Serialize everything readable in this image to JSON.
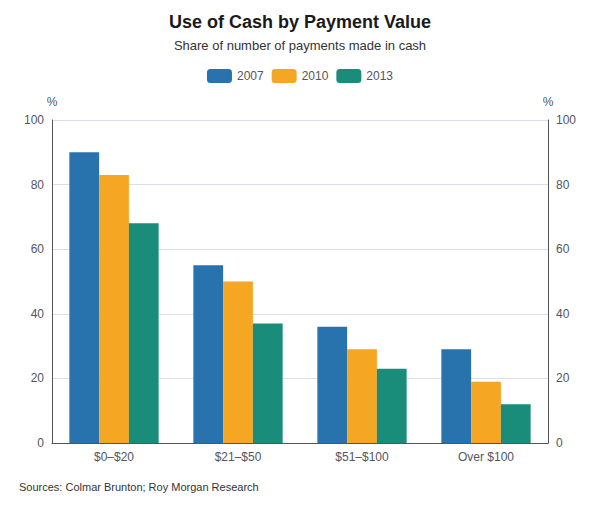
{
  "chart_data": {
    "type": "bar",
    "title": "Use of Cash by Payment Value",
    "subtitle": "Share of number of payments made in cash",
    "source": "Sources: Colmar Brunton; Roy Morgan Research",
    "categories": [
      "$0–$20",
      "$21–$50",
      "$51–$100",
      "Over $100"
    ],
    "series": [
      {
        "name": "2007",
        "color": "#2872AE",
        "values": [
          90,
          55,
          36,
          29
        ]
      },
      {
        "name": "2010",
        "color": "#F5A623",
        "values": [
          83,
          50,
          29,
          19
        ]
      },
      {
        "name": "2013",
        "color": "#1A8C7A",
        "values": [
          68,
          37,
          23,
          12
        ]
      }
    ],
    "ylabel": "%",
    "y2label": "%",
    "ylim": [
      0,
      100
    ],
    "yticks": [
      0,
      20,
      40,
      60,
      80,
      100
    ],
    "y2lim": [
      0,
      100
    ],
    "y2ticks": [
      0,
      20,
      40,
      60,
      80,
      100
    ],
    "grid": true,
    "legend": "top"
  }
}
